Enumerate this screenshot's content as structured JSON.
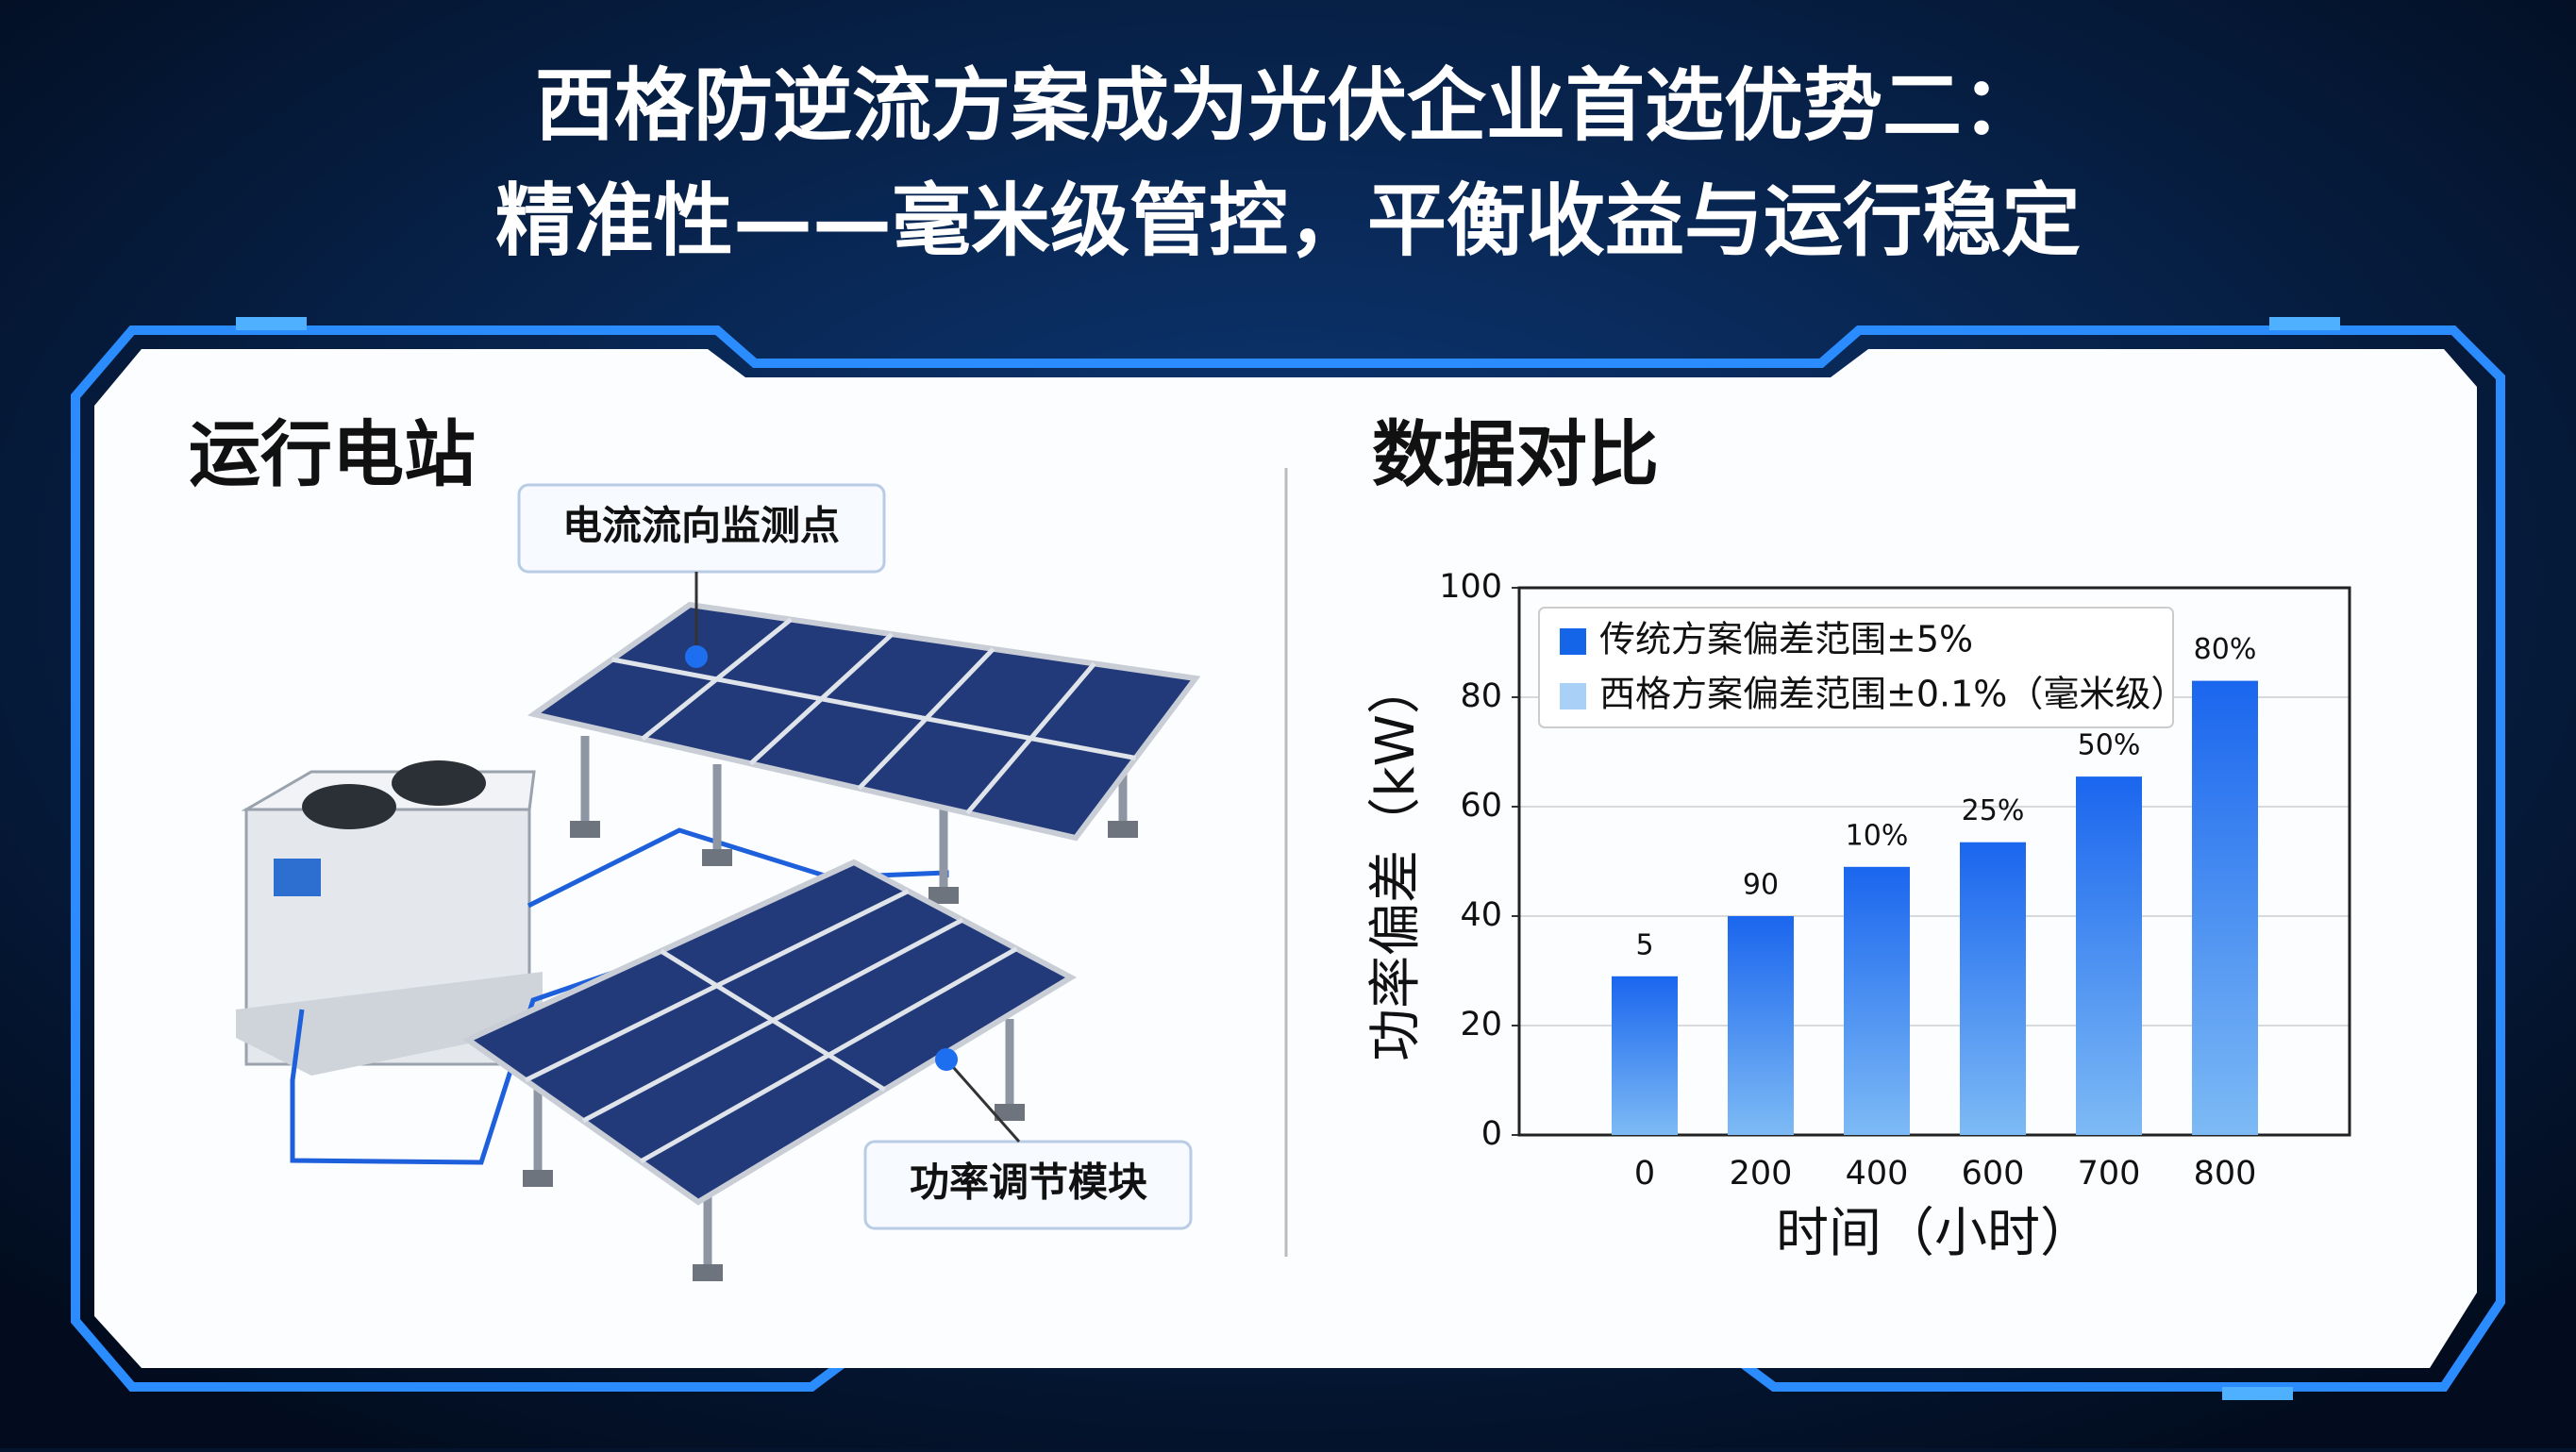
{
  "header": {
    "title_line1": "西格防逆流方案成为光伏企业首选优势二：",
    "title_line2": "精准性——毫米级管控，平衡收益与运行稳定"
  },
  "left_panel": {
    "heading": "运行电站",
    "callouts": [
      "电流流向监测点",
      "功率调节模块"
    ]
  },
  "right_panel": {
    "heading": "数据对比"
  },
  "chart_data": {
    "type": "bar",
    "x_label": "时间（小时）",
    "y_label": "功率偏差（kW）",
    "categories": [
      "0",
      "200",
      "400",
      "600",
      "700",
      "800"
    ],
    "values": [
      29,
      40,
      49,
      53.5,
      65.5,
      83
    ],
    "bar_annotations": [
      "5",
      "90",
      "10%",
      "25%",
      "50%",
      "80%"
    ],
    "color": "#1a66ee",
    "color_light": "#7dbaf5",
    "ylim": [
      0,
      100
    ],
    "yticks": [
      0,
      20,
      40,
      60,
      80,
      100
    ],
    "grid": true,
    "legend_position": "top-left",
    "legend": [
      {
        "name": "传统方案偏差范围±5%",
        "color": "#1565e8"
      },
      {
        "name": "西格方案偏差范围±0.1%（毫米级）",
        "color": "#a9d0f6"
      }
    ]
  }
}
